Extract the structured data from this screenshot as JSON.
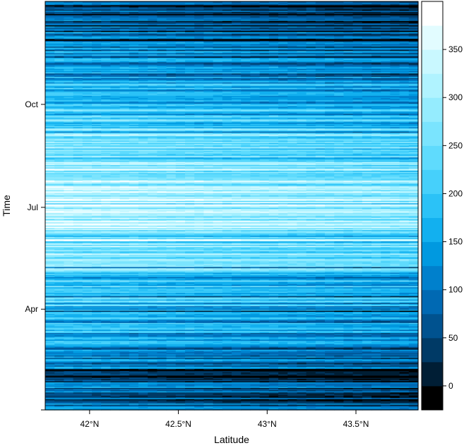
{
  "chart_data": {
    "type": "heatmap",
    "title": "",
    "xlabel": "Latitude",
    "ylabel": "Time",
    "x_ticks": [
      "42°N",
      "42.5°N",
      "43°N",
      "43.5°N"
    ],
    "x_tick_values": [
      42.0,
      42.5,
      43.0,
      43.5
    ],
    "xlim": [
      41.75,
      43.85
    ],
    "y_ticks": [
      "Apr",
      "Jul",
      "Oct"
    ],
    "y_tick_days_from_start": [
      90,
      181,
      273
    ],
    "y_range_days": [
      0,
      365
    ],
    "colorbar": {
      "ticks": [
        "0",
        "50",
        "100",
        "150",
        "200",
        "250",
        "300",
        "350"
      ],
      "tick_values": [
        0,
        50,
        100,
        150,
        200,
        250,
        300,
        350
      ],
      "range": [
        -25,
        400
      ],
      "levels": [
        -25,
        0,
        25,
        50,
        75,
        100,
        125,
        150,
        175,
        200,
        225,
        250,
        275,
        300,
        325,
        350,
        375,
        400
      ],
      "colors": [
        "#000000",
        "#001e35",
        "#003a66",
        "#00528f",
        "#0069b3",
        "#0080cc",
        "#0099e0",
        "#12b0ef",
        "#2bc2f7",
        "#46d0fb",
        "#5fdbfd",
        "#7ae4fe",
        "#95ecfe",
        "#b0f3ff",
        "#c9f8ff",
        "#e2fcff",
        "#ffffff"
      ]
    },
    "seasonal_profile": {
      "description_days": [
        0,
        30,
        60,
        90,
        120,
        150,
        181,
        210,
        240,
        273,
        300,
        330,
        365
      ],
      "mean_value": [
        100,
        110,
        140,
        190,
        250,
        300,
        330,
        300,
        260,
        200,
        150,
        110,
        95
      ]
    }
  }
}
